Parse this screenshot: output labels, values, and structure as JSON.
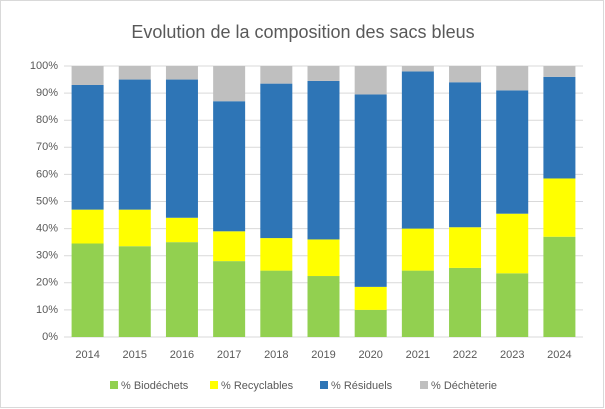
{
  "chart_data": {
    "type": "stacked_bar",
    "title": "Evolution de la composition des sacs bleus",
    "categories": [
      "2014",
      "2015",
      "2016",
      "2017",
      "2018",
      "2019",
      "2020",
      "2021",
      "2022",
      "2023",
      "2024"
    ],
    "series": [
      {
        "name": "% Biodéchets",
        "color": "#92d050",
        "values": [
          34.5,
          33.5,
          35,
          28,
          24.5,
          22.5,
          10,
          24.5,
          25.5,
          23.5,
          37
        ]
      },
      {
        "name": "% Recyclables",
        "color": "#ffff00",
        "values": [
          12.5,
          13.5,
          9,
          11,
          12,
          13.5,
          8.5,
          15.5,
          15,
          22,
          21.5
        ]
      },
      {
        "name": "% Résiduels",
        "color": "#2e75b6",
        "values": [
          46,
          48,
          51,
          48,
          57,
          58.5,
          71,
          58,
          53.5,
          45.5,
          37.5
        ]
      },
      {
        "name": "% Déchèterie",
        "color": "#bfbfbf",
        "values": [
          7,
          5,
          5,
          13,
          6.5,
          5.5,
          10.5,
          2,
          6,
          9,
          4
        ]
      }
    ],
    "ylim": [
      0,
      100
    ],
    "yticks": [
      {
        "value": 0,
        "label": "0%"
      },
      {
        "value": 10,
        "label": "10%"
      },
      {
        "value": 20,
        "label": "20%"
      },
      {
        "value": 30,
        "label": "30%"
      },
      {
        "value": 40,
        "label": "40%"
      },
      {
        "value": 50,
        "label": "50%"
      },
      {
        "value": 60,
        "label": "60%"
      },
      {
        "value": 70,
        "label": "70%"
      },
      {
        "value": 80,
        "label": "80%"
      },
      {
        "value": 90,
        "label": "90%"
      },
      {
        "value": 100,
        "label": "100%"
      }
    ],
    "grid": true,
    "legend": "bottom"
  }
}
